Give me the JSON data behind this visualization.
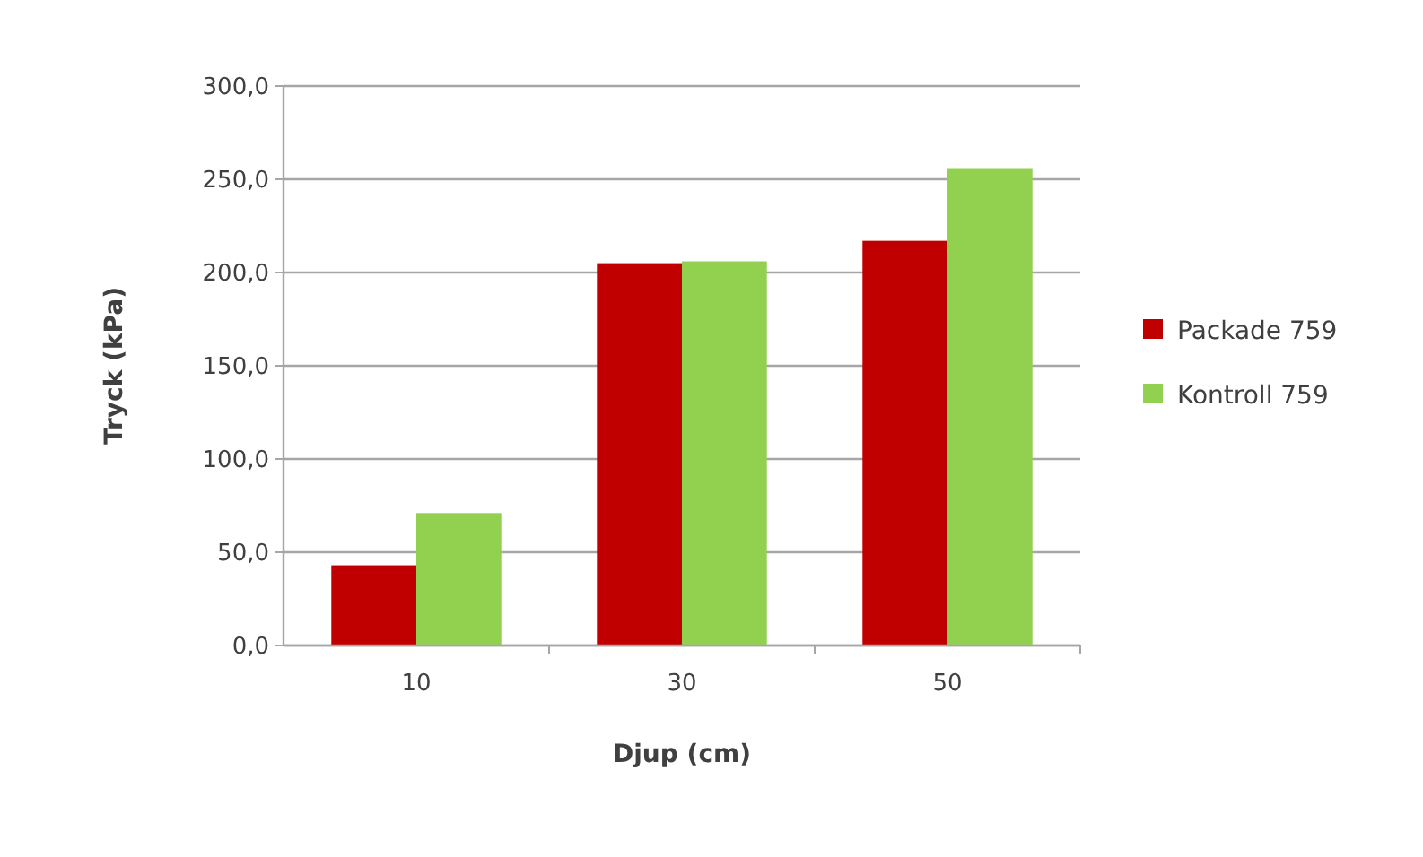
{
  "chart_data": {
    "type": "bar",
    "xlabel": "Djup (cm)",
    "ylabel": "Tryck (kPa)",
    "categories": [
      "10",
      "30",
      "50"
    ],
    "series": [
      {
        "name": "Packade 759",
        "color": "#c00000",
        "values": [
          43,
          205,
          217
        ]
      },
      {
        "name": "Kontroll 759",
        "color": "#92d050",
        "values": [
          71,
          206,
          256
        ]
      }
    ],
    "ylim": [
      0,
      300
    ],
    "yticks": [
      {
        "value": 0,
        "label": "0,0"
      },
      {
        "value": 50,
        "label": "50,0"
      },
      {
        "value": 100,
        "label": "100,0"
      },
      {
        "value": 150,
        "label": "150,0"
      },
      {
        "value": 200,
        "label": "200,0"
      },
      {
        "value": 250,
        "label": "250,0"
      },
      {
        "value": 300,
        "label": "300,0"
      }
    ],
    "grid": "y",
    "legend": "right"
  }
}
